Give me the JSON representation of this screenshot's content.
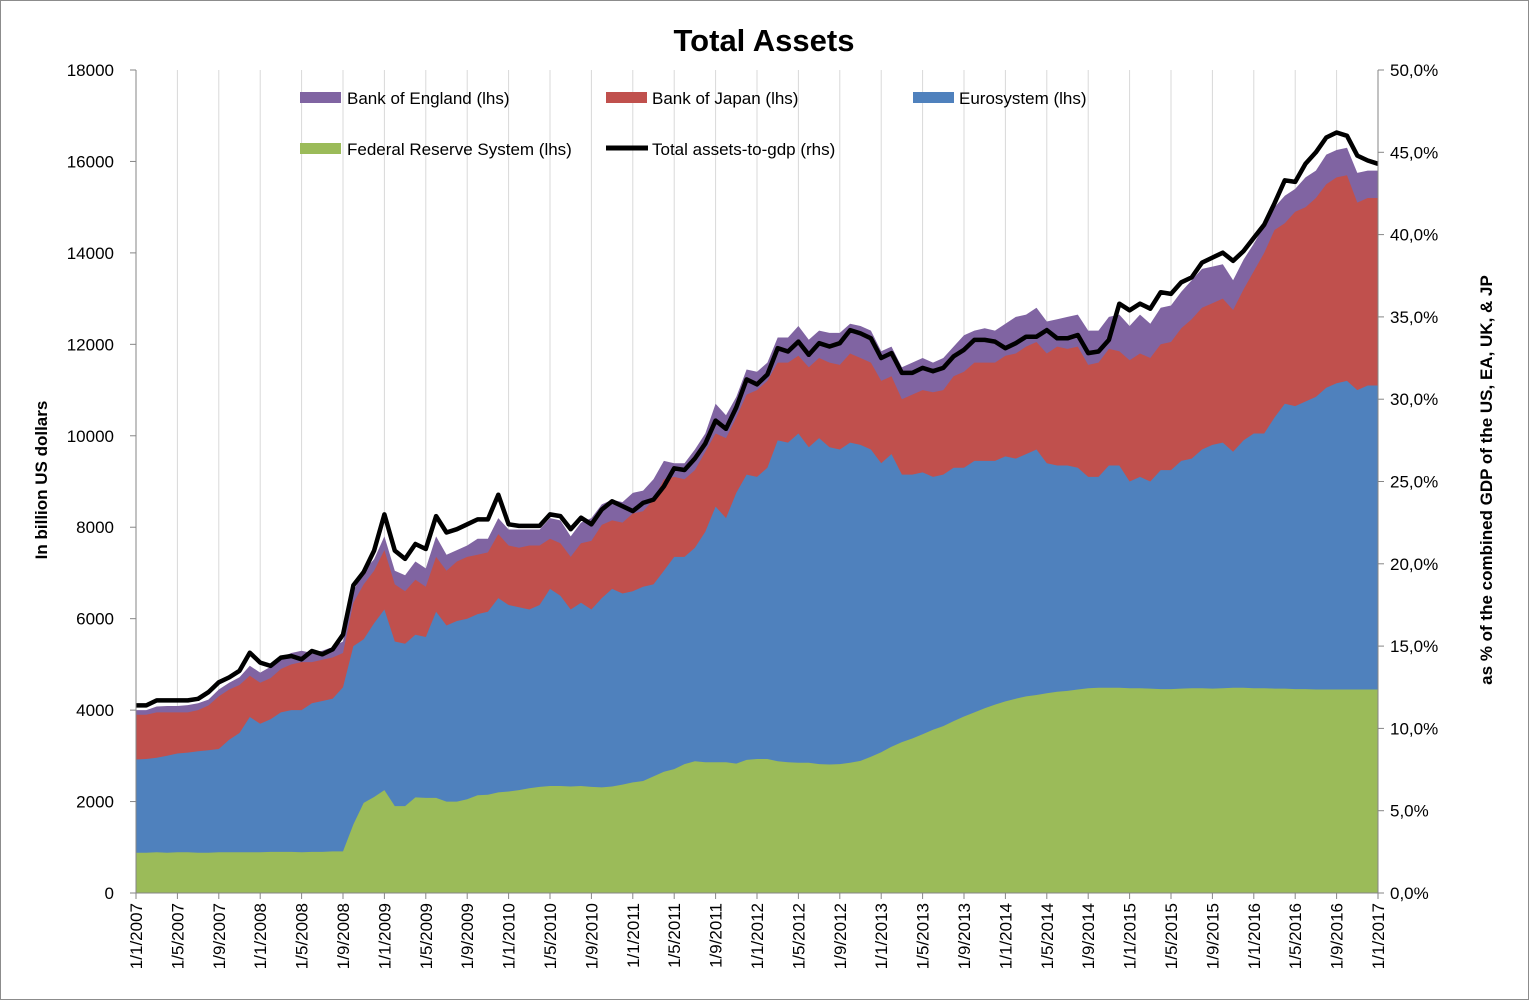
{
  "chart_data": {
    "type": "area",
    "title": "Total Assets",
    "ylabel": "In billion US dollars",
    "ylabel_right": "as % of the combined GDP of the US, EA, UK, & JP",
    "ylim": [
      0,
      18000
    ],
    "ylim_right": [
      0,
      50
    ],
    "yticks": [
      "0",
      "2000",
      "4000",
      "6000",
      "8000",
      "10000",
      "12000",
      "14000",
      "16000",
      "18000"
    ],
    "yticks_right": [
      "0,0%",
      "5,0%",
      "10,0%",
      "15,0%",
      "20,0%",
      "25,0%",
      "30,0%",
      "35,0%",
      "40,0%",
      "45,0%",
      "50,0%"
    ],
    "xticks": [
      "1/1/2007",
      "1/5/2007",
      "1/9/2007",
      "1/1/2008",
      "1/5/2008",
      "1/9/2008",
      "1/1/2009",
      "1/5/2009",
      "1/9/2009",
      "1/1/2010",
      "1/5/2010",
      "1/9/2010",
      "1/1/2011",
      "1/5/2011",
      "1/9/2011",
      "1/1/2012",
      "1/5/2012",
      "1/9/2012",
      "1/1/2013",
      "1/5/2013",
      "1/9/2013",
      "1/1/2014",
      "1/5/2014",
      "1/9/2014",
      "1/1/2015",
      "1/5/2015",
      "1/9/2015",
      "1/1/2016",
      "1/5/2016",
      "1/9/2016",
      "1/1/2017"
    ],
    "grid": "vertical-major",
    "legend_position": "top",
    "series": [
      {
        "name": "Federal Reserve System (lhs)",
        "color": "#9bbb59",
        "kind": "area",
        "axis": "left",
        "values": [
          880,
          880,
          890,
          880,
          890,
          890,
          880,
          880,
          890,
          890,
          890,
          890,
          890,
          900,
          900,
          900,
          890,
          900,
          900,
          910,
          910,
          1500,
          1970,
          2100,
          2250,
          1900,
          1900,
          2090,
          2080,
          2080,
          2000,
          2000,
          2050,
          2140,
          2150,
          2200,
          2220,
          2250,
          2290,
          2320,
          2340,
          2340,
          2330,
          2340,
          2320,
          2310,
          2330,
          2370,
          2420,
          2450,
          2550,
          2650,
          2710,
          2820,
          2880,
          2860,
          2860,
          2860,
          2830,
          2910,
          2930,
          2930,
          2880,
          2860,
          2850,
          2850,
          2820,
          2810,
          2820,
          2850,
          2890,
          2980,
          3080,
          3200,
          3300,
          3380,
          3470,
          3570,
          3650,
          3760,
          3860,
          3950,
          4040,
          4120,
          4190,
          4250,
          4300,
          4330,
          4370,
          4400,
          4420,
          4450,
          4480,
          4490,
          4490,
          4490,
          4480,
          4480,
          4470,
          4460,
          4460,
          4470,
          4480,
          4480,
          4470,
          4480,
          4490,
          4490,
          4480,
          4480,
          4470,
          4470,
          4460,
          4460,
          4450,
          4450,
          4450,
          4450,
          4450,
          4450,
          4450
        ]
      },
      {
        "name": "Eurosystem (lhs)",
        "color": "#4f81bd",
        "kind": "area",
        "axis": "left",
        "values": [
          2920,
          2930,
          2960,
          3000,
          3050,
          3070,
          3100,
          3120,
          3150,
          3350,
          3500,
          3850,
          3700,
          3800,
          3950,
          4000,
          4000,
          4150,
          4200,
          4250,
          4500,
          5400,
          5550,
          5900,
          6200,
          5500,
          5450,
          5650,
          5600,
          6150,
          5850,
          5950,
          6000,
          6100,
          6150,
          6450,
          6300,
          6250,
          6200,
          6300,
          6650,
          6500,
          6200,
          6350,
          6200,
          6450,
          6650,
          6550,
          6600,
          6700,
          6750,
          7050,
          7350,
          7350,
          7550,
          7900,
          8450,
          8200,
          8750,
          9150,
          9100,
          9300,
          9900,
          9850,
          10050,
          9750,
          9950,
          9750,
          9700,
          9850,
          9800,
          9700,
          9400,
          9600,
          9150,
          9150,
          9200,
          9100,
          9150,
          9300,
          9300,
          9450,
          9450,
          9450,
          9550,
          9500,
          9600,
          9700,
          9400,
          9350,
          9350,
          9300,
          9100,
          9100,
          9350,
          9350,
          9000,
          9100,
          9000,
          9250,
          9250,
          9450,
          9500,
          9700,
          9800,
          9850,
          9650,
          9900,
          10050,
          10050,
          10400,
          10700,
          10650,
          10750,
          10850,
          11050,
          11150,
          11200,
          11000,
          11100,
          11100
        ]
      },
      {
        "name": "Bank of Japan (lhs)",
        "color": "#c0504d",
        "kind": "area",
        "axis": "left",
        "values": [
          3900,
          3900,
          3950,
          3950,
          3950,
          3950,
          4000,
          4100,
          4300,
          4450,
          4550,
          4750,
          4600,
          4700,
          4900,
          5000,
          5050,
          5050,
          5100,
          5150,
          5250,
          6350,
          6750,
          7050,
          7500,
          6750,
          6600,
          6850,
          6700,
          7350,
          7050,
          7250,
          7350,
          7400,
          7450,
          7850,
          7600,
          7550,
          7600,
          7600,
          7750,
          7650,
          7350,
          7650,
          7700,
          8050,
          8150,
          8100,
          8300,
          8350,
          8600,
          9050,
          9100,
          9050,
          9250,
          9650,
          10050,
          9950,
          10400,
          10900,
          11000,
          11200,
          11600,
          11600,
          11750,
          11500,
          11700,
          11600,
          11550,
          11800,
          11700,
          11600,
          11200,
          11300,
          10800,
          10900,
          11000,
          10950,
          11000,
          11300,
          11400,
          11600,
          11600,
          11600,
          11750,
          11800,
          11950,
          12050,
          11800,
          11950,
          11900,
          11950,
          11550,
          11600,
          11900,
          11850,
          11650,
          11800,
          11700,
          12000,
          12050,
          12350,
          12550,
          12800,
          12900,
          13000,
          12750,
          13200,
          13600,
          14000,
          14500,
          14650,
          14900,
          15000,
          15200,
          15500,
          15650,
          15700,
          15100,
          15200,
          15200
        ]
      },
      {
        "name": "Bank of England (lhs)",
        "color": "#8064a2",
        "kind": "area",
        "axis": "left",
        "values": [
          4000,
          4000,
          4080,
          4090,
          4090,
          4110,
          4150,
          4230,
          4450,
          4600,
          4720,
          4970,
          4820,
          4950,
          5150,
          5250,
          5300,
          5250,
          5300,
          5380,
          5500,
          6600,
          7050,
          7300,
          7800,
          7050,
          6950,
          7250,
          7100,
          7800,
          7400,
          7500,
          7600,
          7750,
          7750,
          8200,
          7950,
          7950,
          7950,
          7950,
          8200,
          8150,
          7800,
          8100,
          8200,
          8500,
          8600,
          8550,
          8750,
          8800,
          9050,
          9450,
          9400,
          9400,
          9700,
          10050,
          10700,
          10450,
          10850,
          11450,
          11400,
          11600,
          12150,
          12150,
          12400,
          12100,
          12300,
          12250,
          12250,
          12450,
          12400,
          12300,
          11850,
          11950,
          11500,
          11600,
          11700,
          11600,
          11700,
          11950,
          12200,
          12300,
          12350,
          12300,
          12450,
          12600,
          12650,
          12800,
          12500,
          12550,
          12600,
          12650,
          12300,
          12300,
          12600,
          12650,
          12400,
          12650,
          12450,
          12800,
          12850,
          13150,
          13400,
          13650,
          13700,
          13750,
          13400,
          13850,
          14200,
          14600,
          15000,
          15250,
          15400,
          15650,
          15800,
          16150,
          16250,
          16300,
          15750,
          15800,
          15800
        ]
      },
      {
        "name": "Total assets-to-gdp (rhs)",
        "color": "#000000",
        "kind": "line",
        "axis": "right",
        "values": [
          11.4,
          11.4,
          11.7,
          11.7,
          11.7,
          11.7,
          11.8,
          12.2,
          12.8,
          13.1,
          13.5,
          14.6,
          14.0,
          13.8,
          14.3,
          14.4,
          14.2,
          14.7,
          14.5,
          14.8,
          15.7,
          18.7,
          19.5,
          20.8,
          23.0,
          20.8,
          20.3,
          21.2,
          20.9,
          22.9,
          21.9,
          22.1,
          22.4,
          22.7,
          22.7,
          24.2,
          22.4,
          22.3,
          22.3,
          22.3,
          23.0,
          22.9,
          22.1,
          22.8,
          22.4,
          23.3,
          23.8,
          23.5,
          23.2,
          23.7,
          23.9,
          24.7,
          25.8,
          25.7,
          26.4,
          27.3,
          28.7,
          28.2,
          29.5,
          31.2,
          30.9,
          31.5,
          33.1,
          32.9,
          33.5,
          32.7,
          33.4,
          33.2,
          33.4,
          34.2,
          34.0,
          33.7,
          32.5,
          32.8,
          31.6,
          31.6,
          31.9,
          31.7,
          31.9,
          32.6,
          33.0,
          33.6,
          33.6,
          33.5,
          33.1,
          33.4,
          33.8,
          33.8,
          34.2,
          33.7,
          33.7,
          33.9,
          32.8,
          32.9,
          33.6,
          35.8,
          35.4,
          35.8,
          35.5,
          36.5,
          36.4,
          37.1,
          37.4,
          38.3,
          38.6,
          38.9,
          38.4,
          39.0,
          39.8,
          40.6,
          41.9,
          43.3,
          43.2,
          44.3,
          45.0,
          45.9,
          46.2,
          46.0,
          44.8,
          44.5,
          44.3
        ]
      }
    ]
  }
}
